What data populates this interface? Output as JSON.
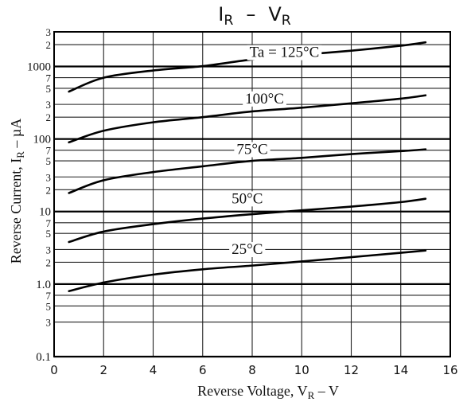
{
  "chart_data": {
    "type": "line",
    "title": {
      "main": "I",
      "main_sub": "R",
      "sep": "–",
      "second": "V",
      "second_sub": "R"
    },
    "xlabel": {
      "prefix": "Reverse Voltage, V",
      "sub": "R",
      "suffix": " – V"
    },
    "ylabel": {
      "prefix": "Reverse Current, I",
      "sub": "R",
      "suffix": " – µA"
    },
    "xlim": [
      0,
      16
    ],
    "ylim": [
      0.1,
      3000
    ],
    "yscale": "log",
    "grid": true,
    "x_ticks": [
      {
        "value": 0,
        "label": "0"
      },
      {
        "value": 2,
        "label": "2"
      },
      {
        "value": 4,
        "label": "4"
      },
      {
        "value": 6,
        "label": "6"
      },
      {
        "value": 8,
        "label": "8"
      },
      {
        "value": 10,
        "label": "10"
      },
      {
        "value": 12,
        "label": "12"
      },
      {
        "value": 14,
        "label": "14"
      },
      {
        "value": 16,
        "label": "16"
      }
    ],
    "y_major_ticks": [
      {
        "value": 0.1,
        "label": "0.1"
      },
      {
        "value": 1,
        "label": "1.0"
      },
      {
        "value": 10,
        "label": "10"
      },
      {
        "value": 100,
        "label": "100"
      },
      {
        "value": 1000,
        "label": "1000"
      }
    ],
    "y_minor_ticks": [
      {
        "value": 0.3,
        "label": "3"
      },
      {
        "value": 0.5,
        "label": "5"
      },
      {
        "value": 0.7,
        "label": "7"
      },
      {
        "value": 2,
        "label": "2"
      },
      {
        "value": 3,
        "label": "3"
      },
      {
        "value": 5,
        "label": "5"
      },
      {
        "value": 7,
        "label": "7"
      },
      {
        "value": 20,
        "label": "2"
      },
      {
        "value": 30,
        "label": "3"
      },
      {
        "value": 50,
        "label": "5"
      },
      {
        "value": 70,
        "label": "7"
      },
      {
        "value": 200,
        "label": "2"
      },
      {
        "value": 300,
        "label": "3"
      },
      {
        "value": 500,
        "label": "5"
      },
      {
        "value": 700,
        "label": "7"
      },
      {
        "value": 2000,
        "label": "2"
      },
      {
        "value": 3000,
        "label": "3"
      }
    ],
    "series": [
      {
        "name": "Ta = 125°C",
        "label_at": {
          "x": 9.3,
          "y": 1350
        },
        "x": [
          0.6,
          2,
          4,
          6,
          8,
          10,
          12,
          14,
          15
        ],
        "values": [
          450,
          700,
          880,
          1010,
          1250,
          1450,
          1650,
          1930,
          2150
        ]
      },
      {
        "name": "100°C",
        "label_at": {
          "x": 8.5,
          "y": 310
        },
        "x": [
          0.6,
          2,
          4,
          6,
          8,
          10,
          12,
          14,
          15
        ],
        "values": [
          90,
          130,
          170,
          200,
          240,
          270,
          310,
          360,
          400
        ]
      },
      {
        "name": "75°C",
        "label_at": {
          "x": 8.0,
          "y": 62
        },
        "x": [
          0.6,
          2,
          4,
          6,
          8,
          10,
          12,
          14,
          15
        ],
        "values": [
          18,
          27,
          35,
          42,
          50,
          55,
          62,
          68,
          72
        ]
      },
      {
        "name": "50°C",
        "label_at": {
          "x": 7.8,
          "y": 13
        },
        "x": [
          0.6,
          2,
          4,
          6,
          8,
          10,
          12,
          14,
          15
        ],
        "values": [
          3.8,
          5.3,
          6.7,
          8,
          9.2,
          10.4,
          11.7,
          13.5,
          15
        ]
      },
      {
        "name": "25°C",
        "label_at": {
          "x": 7.8,
          "y": 2.6
        },
        "x": [
          0.6,
          2,
          4,
          6,
          8,
          10,
          12,
          14,
          15
        ],
        "values": [
          0.8,
          1.05,
          1.35,
          1.6,
          1.8,
          2.05,
          2.35,
          2.7,
          2.9
        ]
      }
    ]
  }
}
